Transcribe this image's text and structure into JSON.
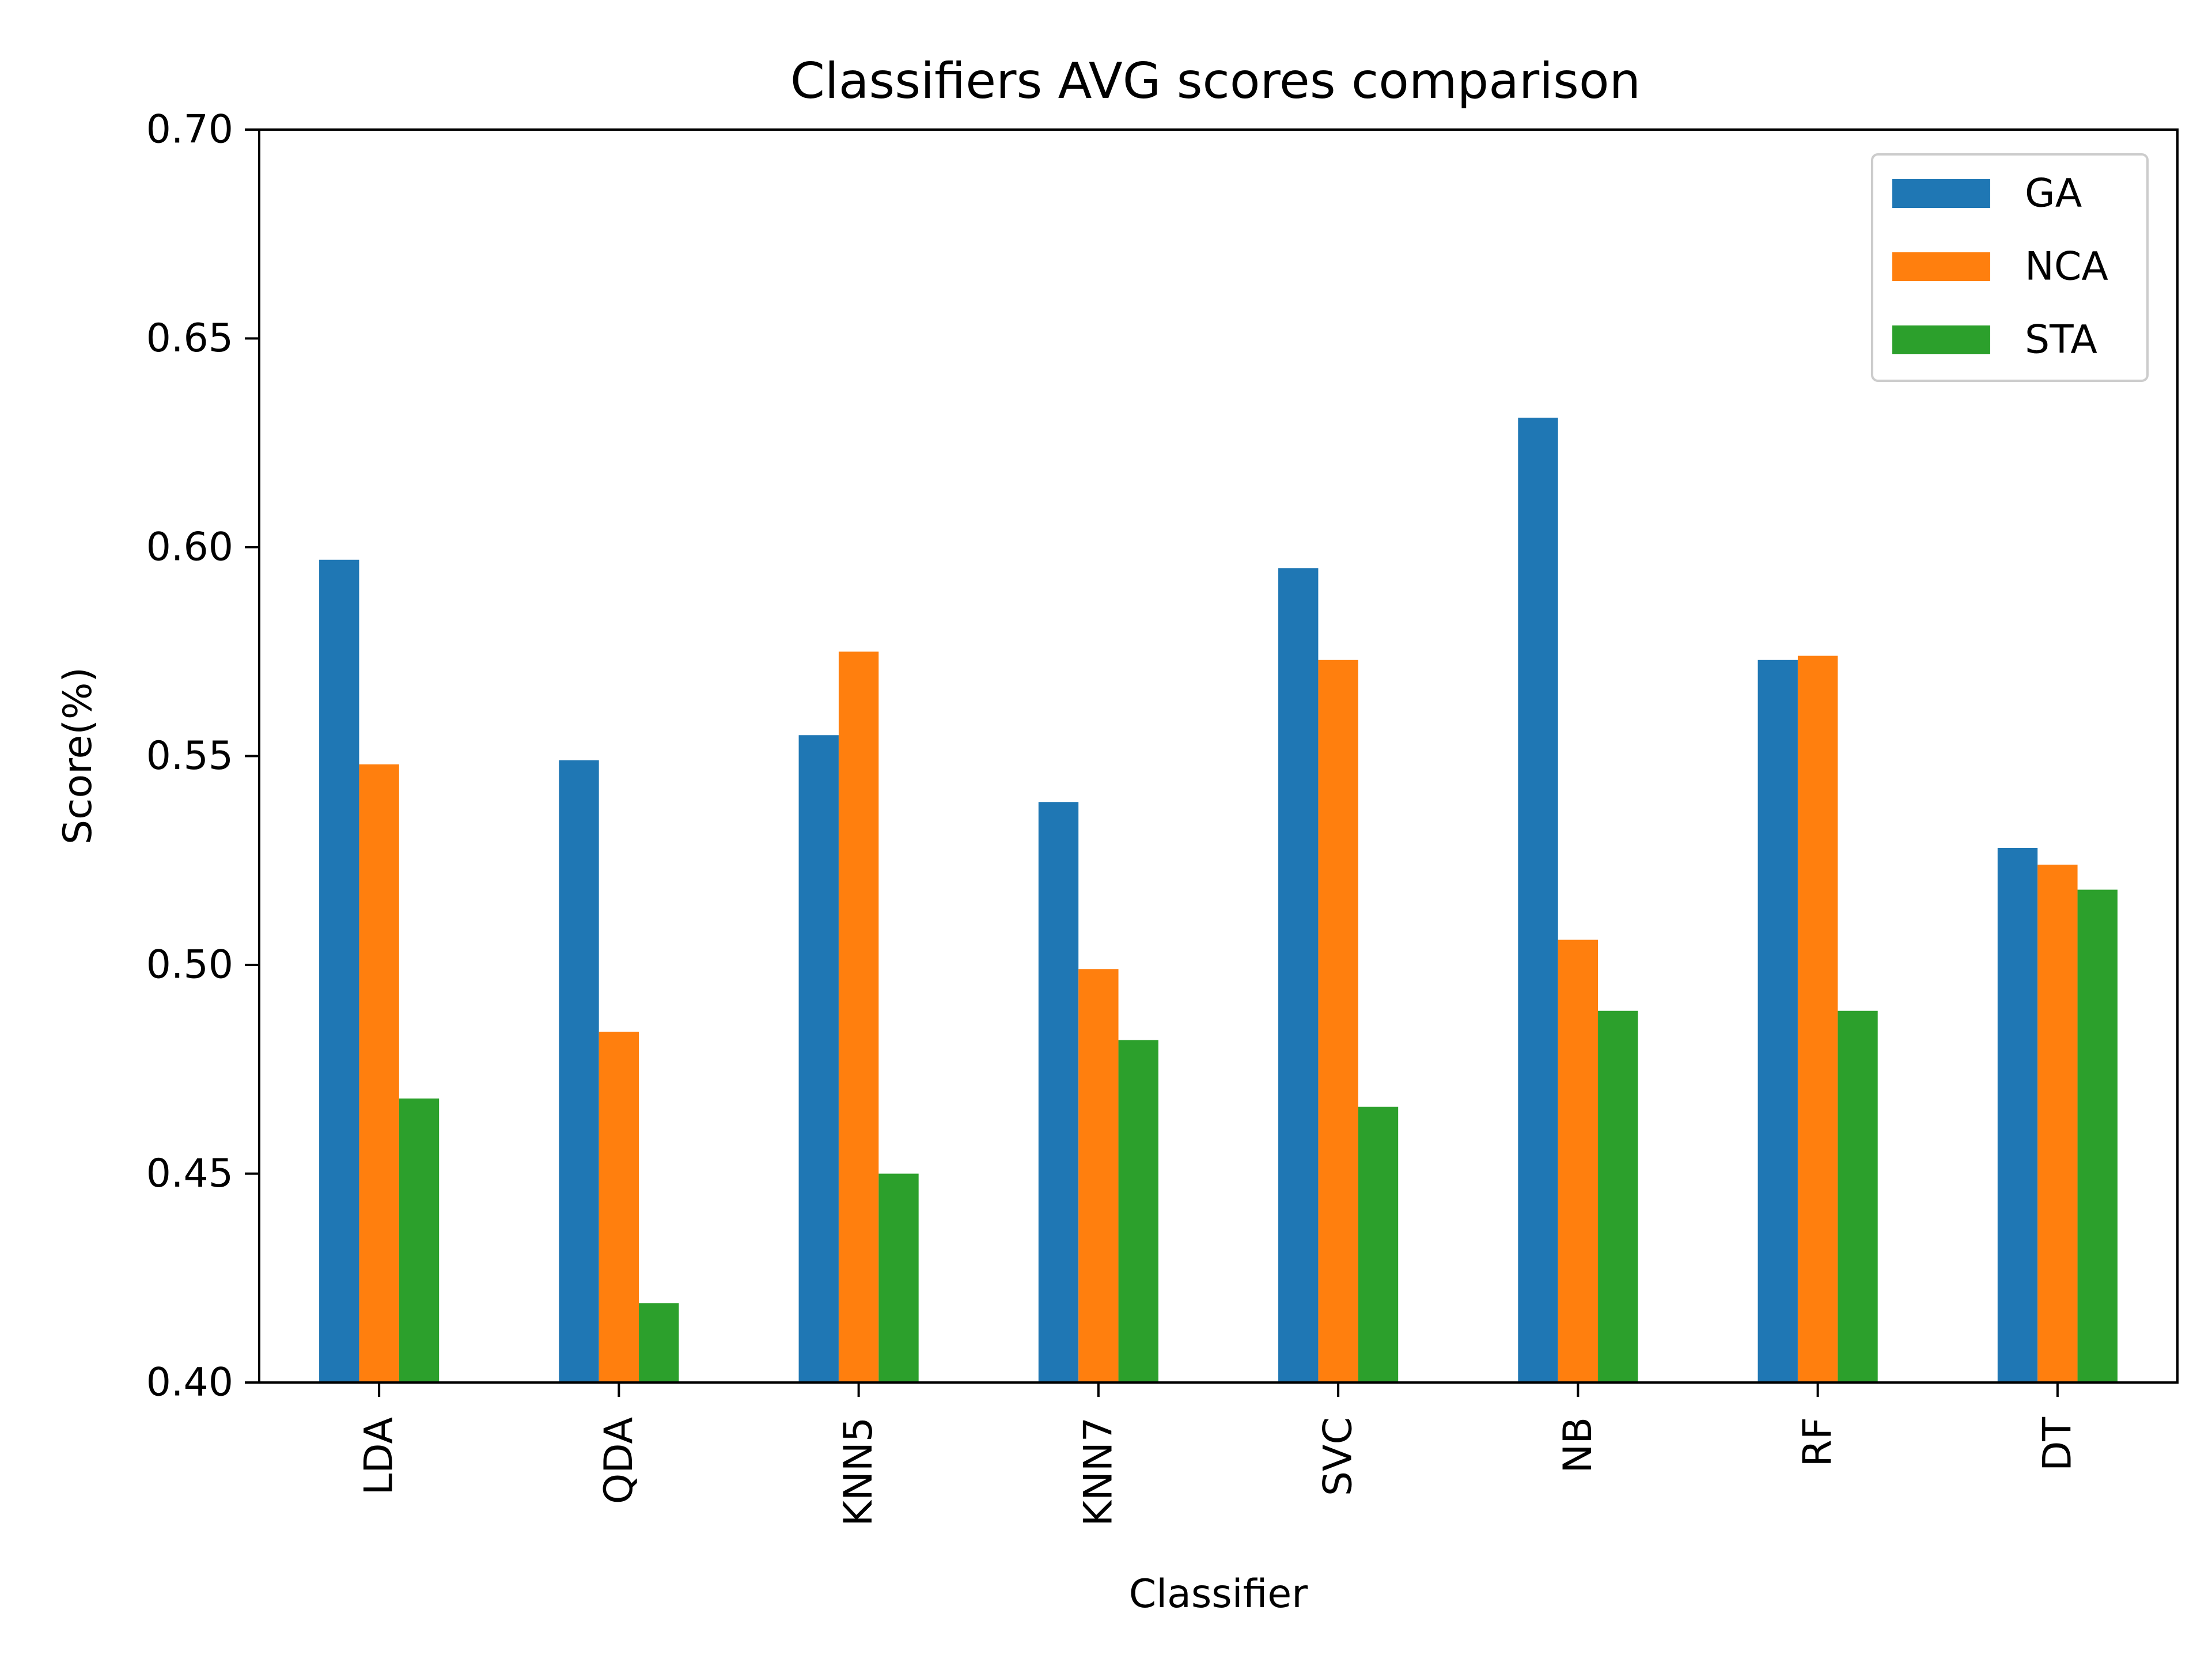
{
  "chart_data": {
    "type": "bar",
    "title": "Classifiers AVG scores comparison",
    "xlabel": "Classifier",
    "ylabel": "Score(%)",
    "categories": [
      "LDA",
      "QDA",
      "KNN5",
      "KNN7",
      "SVC",
      "NB",
      "RF",
      "DT"
    ],
    "series": [
      {
        "name": "GA",
        "color": "#1f77b4",
        "values": [
          0.597,
          0.549,
          0.555,
          0.539,
          0.595,
          0.631,
          0.573,
          0.528
        ]
      },
      {
        "name": "NCA",
        "color": "#ff7f0e",
        "values": [
          0.548,
          0.484,
          0.575,
          0.499,
          0.573,
          0.506,
          0.574,
          0.524
        ]
      },
      {
        "name": "STA",
        "color": "#2ca02c",
        "values": [
          0.468,
          0.419,
          0.45,
          0.482,
          0.466,
          0.489,
          0.489,
          0.518
        ]
      }
    ],
    "ylim": [
      0.4,
      0.7
    ],
    "yticks": [
      "0.40",
      "0.45",
      "0.50",
      "0.55",
      "0.60",
      "0.65",
      "0.70"
    ],
    "grid": false,
    "legend": "top-right"
  }
}
